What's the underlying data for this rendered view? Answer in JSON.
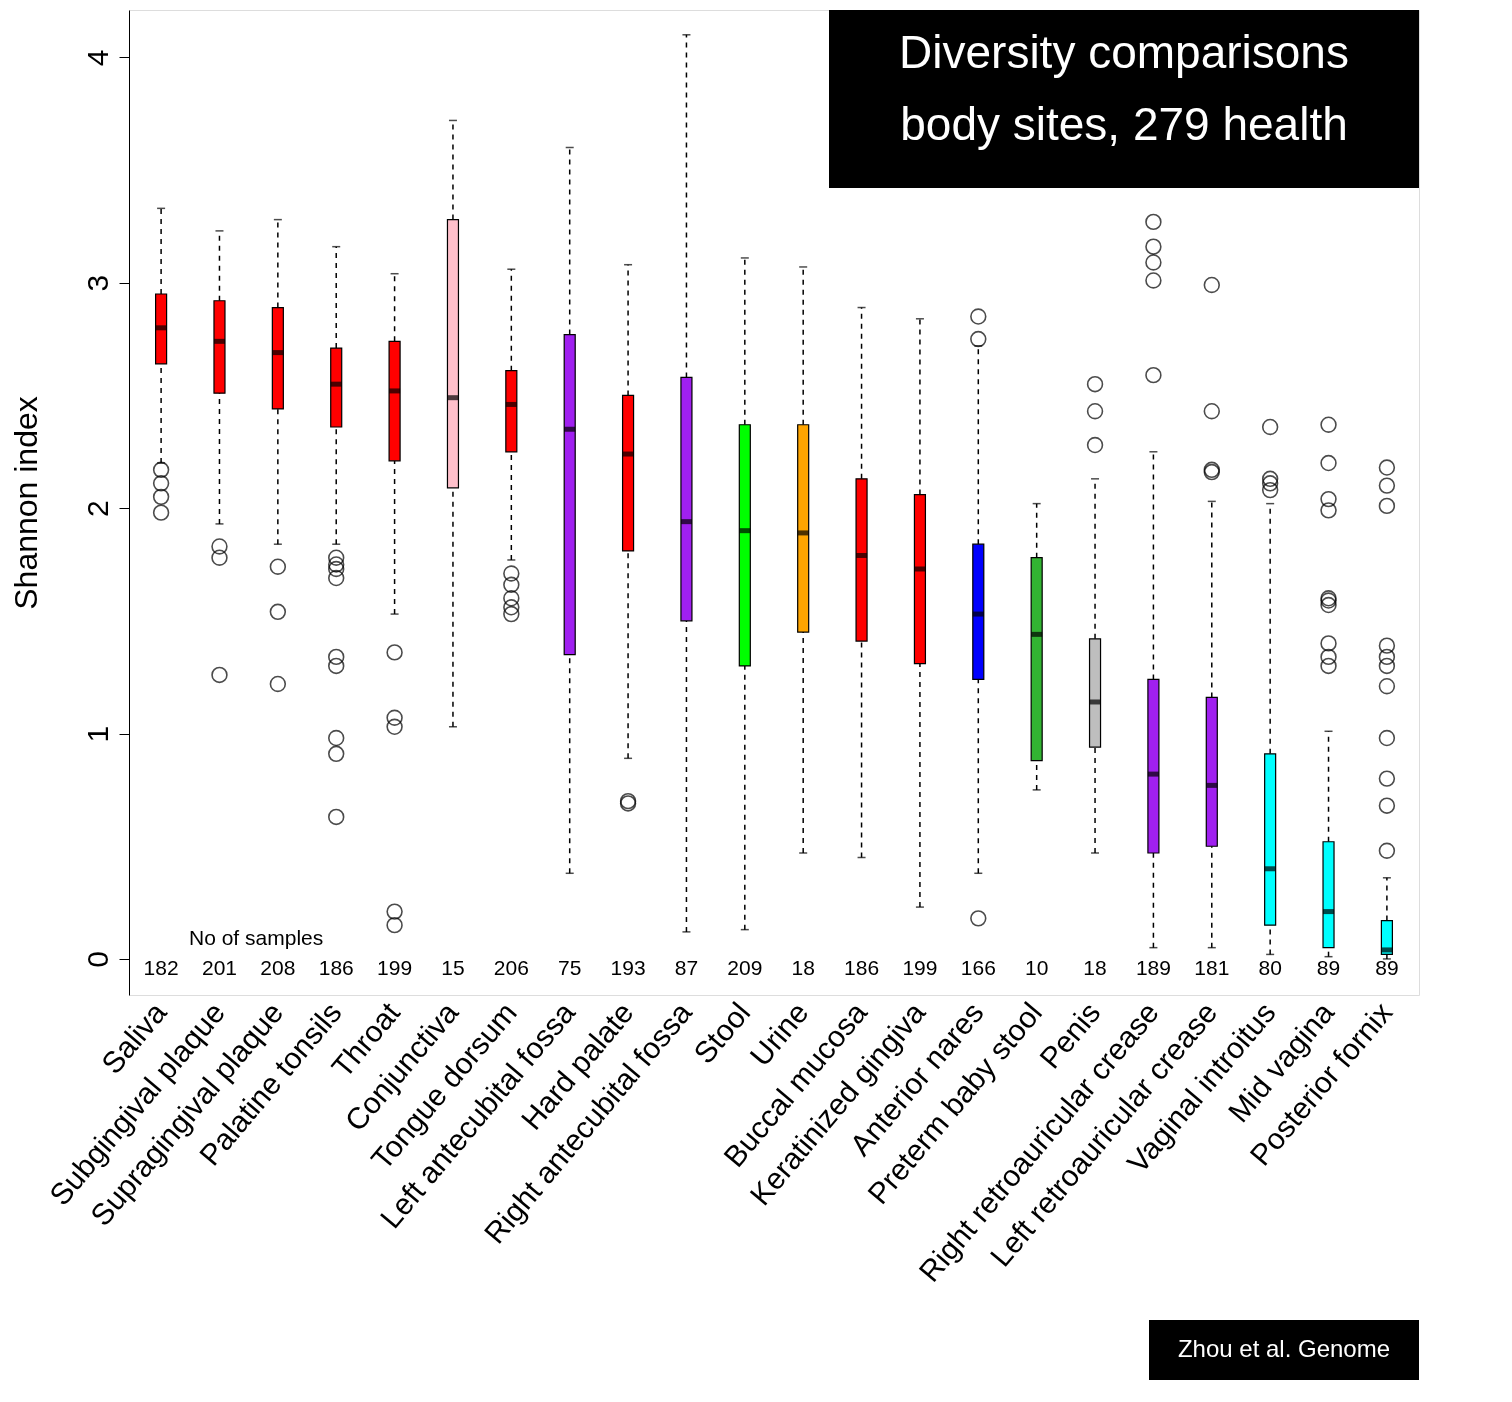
{
  "chart_data": {
    "type": "box",
    "title": "Diversity comparisons\nbody sites, 279 health",
    "ylabel": "Shannon index",
    "categories": [
      "Saliva",
      "Subgingival plaque",
      "Supragingival plaque",
      "Palatine tonsils",
      "Throat",
      "Conjunctiva",
      "Tongue dorsum",
      "Left antecubital fossa",
      "Hard palate",
      "Right antecubital fossa",
      "Stool",
      "Urine",
      "Buccal mucosa",
      "Keratinized gingiva",
      "Anterior nares",
      "Preterm baby stool",
      "Penis",
      "Right retroauricular crease",
      "Left retroauricular crease",
      "Vaginal introitus",
      "Mid vagina",
      "Posterior fornix"
    ],
    "colors": [
      "#ff0000",
      "#ff0000",
      "#ff0000",
      "#ff0000",
      "#ff0000",
      "#ffc0cb",
      "#ff0000",
      "#a020f0",
      "#ff0000",
      "#a020f0",
      "#00ff00",
      "#ffa500",
      "#ff0000",
      "#ff0000",
      "#0000ff",
      "#32b432",
      "#bebebe",
      "#a020f0",
      "#a020f0",
      "#00ffff",
      "#00ffff",
      "#00ffff"
    ],
    "boxes": [
      {
        "low": 2.2,
        "q1": 2.64,
        "median": 2.8,
        "q3": 2.95,
        "high": 3.33,
        "outliers": [
          2.17,
          2.11,
          2.05,
          1.98
        ]
      },
      {
        "low": 1.93,
        "q1": 2.51,
        "median": 2.74,
        "q3": 2.92,
        "high": 3.23,
        "outliers": [
          1.83,
          1.78,
          1.26
        ]
      },
      {
        "low": 1.84,
        "q1": 2.44,
        "median": 2.69,
        "q3": 2.89,
        "high": 3.28,
        "outliers": [
          1.74,
          1.54,
          1.22
        ]
      },
      {
        "low": 1.84,
        "q1": 2.36,
        "median": 2.55,
        "q3": 2.71,
        "high": 3.16,
        "outliers": [
          1.78,
          1.75,
          1.73,
          1.69,
          1.34,
          1.3,
          0.98,
          0.91,
          0.63
        ]
      },
      {
        "low": 1.53,
        "q1": 2.21,
        "median": 2.52,
        "q3": 2.74,
        "high": 3.04,
        "outliers": [
          1.36,
          1.07,
          1.03,
          0.21,
          0.15
        ]
      },
      {
        "low": 1.03,
        "q1": 2.09,
        "median": 2.49,
        "q3": 3.28,
        "high": 3.72
      },
      {
        "low": 1.77,
        "q1": 2.25,
        "median": 2.46,
        "q3": 2.61,
        "high": 3.06,
        "outliers": [
          1.71,
          1.66,
          1.6,
          1.56,
          1.53
        ]
      },
      {
        "low": 0.38,
        "q1": 1.35,
        "median": 2.35,
        "q3": 2.77,
        "high": 3.6
      },
      {
        "low": 0.89,
        "q1": 1.81,
        "median": 2.24,
        "q3": 2.5,
        "high": 3.08,
        "outliers": [
          0.7,
          0.69
        ]
      },
      {
        "low": 0.12,
        "q1": 1.5,
        "median": 1.94,
        "q3": 2.58,
        "high": 4.1
      },
      {
        "low": 0.13,
        "q1": 1.3,
        "median": 1.9,
        "q3": 2.37,
        "high": 3.11
      },
      {
        "low": 0.47,
        "q1": 1.45,
        "median": 1.89,
        "q3": 2.37,
        "high": 3.07
      },
      {
        "low": 0.45,
        "q1": 1.41,
        "median": 1.79,
        "q3": 2.13,
        "high": 2.89
      },
      {
        "low": 0.23,
        "q1": 1.31,
        "median": 1.73,
        "q3": 2.06,
        "high": 2.84
      },
      {
        "low": 0.38,
        "q1": 1.24,
        "median": 1.53,
        "q3": 1.84,
        "high": 2.72,
        "outliers": [
          2.85,
          2.75,
          0.18
        ]
      },
      {
        "low": 0.75,
        "q1": 0.88,
        "median": 1.44,
        "q3": 1.78,
        "high": 2.02
      },
      {
        "low": 0.47,
        "q1": 0.94,
        "median": 1.14,
        "q3": 1.42,
        "high": 2.13,
        "outliers": [
          2.55,
          2.43,
          2.28
        ]
      },
      {
        "low": 0.05,
        "q1": 0.47,
        "median": 0.82,
        "q3": 1.24,
        "high": 2.25,
        "outliers": [
          3.27,
          3.16,
          3.09,
          3.01,
          2.59
        ]
      },
      {
        "low": 0.05,
        "q1": 0.5,
        "median": 0.77,
        "q3": 1.16,
        "high": 2.03,
        "outliers": [
          2.99,
          2.43,
          2.17,
          2.16
        ]
      },
      {
        "low": 0.02,
        "q1": 0.15,
        "median": 0.4,
        "q3": 0.91,
        "high": 2.02,
        "outliers": [
          2.36,
          2.13,
          2.11,
          2.08
        ]
      },
      {
        "low": 0.01,
        "q1": 0.05,
        "median": 0.21,
        "q3": 0.52,
        "high": 1.01,
        "outliers": [
          2.37,
          2.2,
          2.04,
          1.99,
          1.6,
          1.59,
          1.57,
          1.4,
          1.34,
          1.3
        ]
      },
      {
        "low": 0,
        "q1": 0.02,
        "median": 0.04,
        "q3": 0.17,
        "high": 0.36,
        "outliers": [
          2.18,
          2.1,
          2.01,
          1.39,
          1.34,
          1.3,
          1.21,
          0.98,
          0.8,
          0.68,
          0.48
        ]
      }
    ],
    "ylim": [
      -0.16,
      4.21
    ],
    "yticks": [
      0,
      1,
      2,
      3,
      4
    ],
    "grid": false,
    "line_style": "dashed",
    "annotations": [
      "No of samples",
      "182",
      "201",
      "208",
      "186",
      "199",
      "15",
      "206",
      "75",
      "193",
      "87",
      "209",
      "18",
      "186",
      "199",
      "166",
      "10",
      "18",
      "189",
      "181",
      "80",
      "89",
      "89",
      "Zhou et al. Genome"
    ]
  }
}
